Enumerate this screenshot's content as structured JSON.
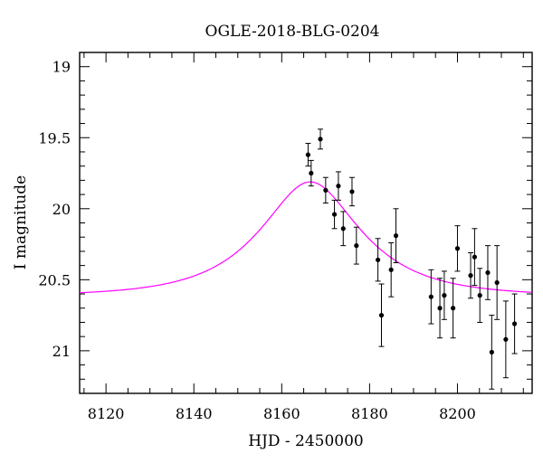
{
  "chart_data": {
    "type": "scatter",
    "title": "OGLE-2018-BLG-0204",
    "xlabel": "HJD - 2450000",
    "ylabel": "I magnitude",
    "xlim": [
      8114,
      8217
    ],
    "ylim": [
      21.3,
      18.9
    ],
    "y_inverted": true,
    "grid": false,
    "legend": "none",
    "x_ticks": [
      8120,
      8140,
      8160,
      8180,
      8200
    ],
    "x_tick_labels": [
      "8120",
      "8140",
      "8160",
      "8180",
      "8200"
    ],
    "y_ticks": [
      19,
      19.5,
      20,
      20.5,
      21
    ],
    "y_tick_labels": [
      "19",
      "19.5",
      "20",
      "20.5",
      "21"
    ],
    "points": [
      {
        "x": 8166.0,
        "y": 19.62,
        "err": 0.08
      },
      {
        "x": 8166.7,
        "y": 19.75,
        "err": 0.09
      },
      {
        "x": 8168.8,
        "y": 19.51,
        "err": 0.07
      },
      {
        "x": 8170.0,
        "y": 19.87,
        "err": 0.09
      },
      {
        "x": 8172.0,
        "y": 20.04,
        "err": 0.1
      },
      {
        "x": 8172.9,
        "y": 19.84,
        "err": 0.1
      },
      {
        "x": 8174.0,
        "y": 20.14,
        "err": 0.12
      },
      {
        "x": 8176.0,
        "y": 19.88,
        "err": 0.1
      },
      {
        "x": 8177.0,
        "y": 20.26,
        "err": 0.13
      },
      {
        "x": 8181.9,
        "y": 20.36,
        "err": 0.15
      },
      {
        "x": 8182.7,
        "y": 20.75,
        "err": 0.22
      },
      {
        "x": 8184.9,
        "y": 20.43,
        "err": 0.19
      },
      {
        "x": 8186.0,
        "y": 20.19,
        "err": 0.19
      },
      {
        "x": 8194.0,
        "y": 20.62,
        "err": 0.19
      },
      {
        "x": 8196.0,
        "y": 20.7,
        "err": 0.21
      },
      {
        "x": 8197.0,
        "y": 20.61,
        "err": 0.17
      },
      {
        "x": 8199.0,
        "y": 20.7,
        "err": 0.21
      },
      {
        "x": 8200.0,
        "y": 20.28,
        "err": 0.16
      },
      {
        "x": 8203.0,
        "y": 20.47,
        "err": 0.16
      },
      {
        "x": 8203.9,
        "y": 20.34,
        "err": 0.2
      },
      {
        "x": 8205.1,
        "y": 20.61,
        "err": 0.19
      },
      {
        "x": 8206.9,
        "y": 20.45,
        "err": 0.19
      },
      {
        "x": 8207.8,
        "y": 21.01,
        "err": 0.26
      },
      {
        "x": 8209.0,
        "y": 20.52,
        "err": 0.26
      },
      {
        "x": 8211.0,
        "y": 20.92,
        "err": 0.27
      },
      {
        "x": 8213.0,
        "y": 20.81,
        "err": 0.21
      }
    ],
    "model": {
      "color": "#ff00ff",
      "baseline_mag": 20.615,
      "t0": 8166.5,
      "u0": 0.525,
      "tE": 19.2,
      "x_range": [
        8114,
        8217
      ]
    },
    "point_color": "#000000"
  }
}
